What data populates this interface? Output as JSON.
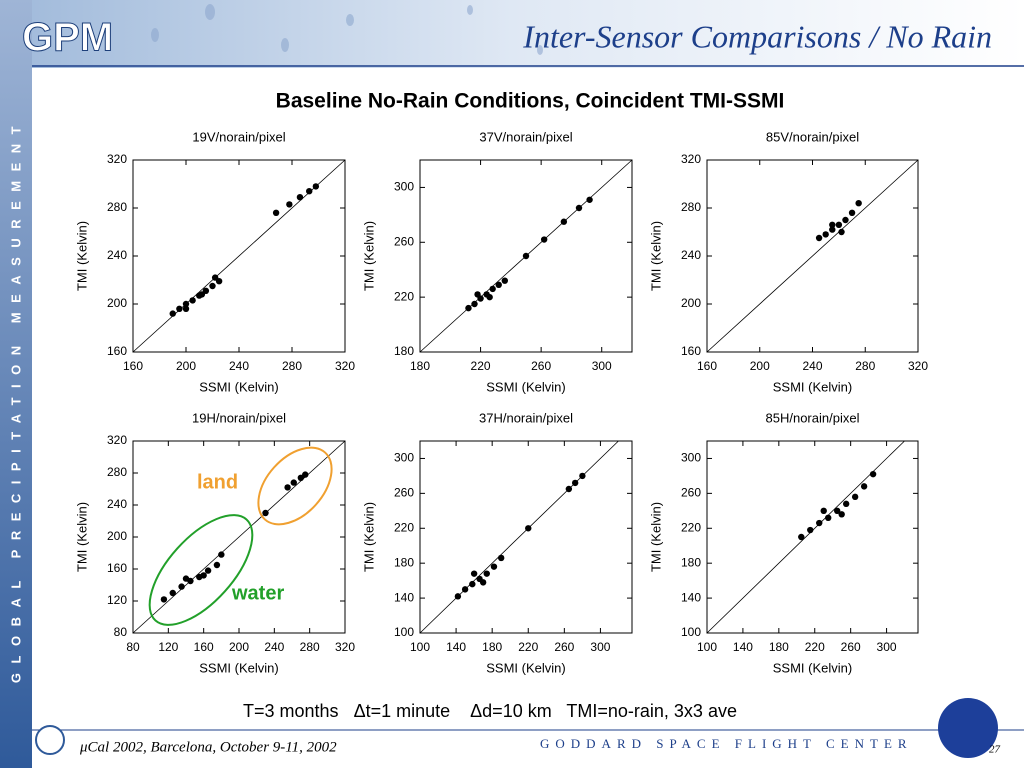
{
  "header": {
    "logo": "GPM",
    "title": "Inter-Sensor Comparisons / No Rain",
    "sidebar": "GLOBAL PRECIPITATION MEASUREMENT"
  },
  "heading": "Baseline No-Rain Conditions, Coincident TMI-SSMI",
  "chart_data": [
    {
      "type": "scatter",
      "title": "19V/norain/pixel",
      "x_label": "SSMI (Kelvin)",
      "y_label": "TMI (Kelvin)",
      "color": "#000000",
      "xlim": [
        160,
        320
      ],
      "ylim": [
        160,
        320
      ],
      "xticks": [
        160,
        200,
        240,
        280,
        320
      ],
      "yticks": [
        160,
        200,
        240,
        280,
        320
      ],
      "x": [
        190,
        195,
        200,
        205,
        210,
        215,
        220,
        225,
        200,
        212,
        222,
        268,
        278,
        286,
        293,
        298
      ],
      "values": [
        192,
        196,
        200,
        203,
        207,
        211,
        215,
        219,
        196,
        208,
        222,
        276,
        283,
        289,
        294,
        298
      ]
    },
    {
      "type": "scatter",
      "title": "37V/norain/pixel",
      "x_label": "SSMI (Kelvin)",
      "y_label": "TMI (Kelvin)",
      "color": "#000000",
      "xlim": [
        180,
        320
      ],
      "ylim": [
        180,
        320
      ],
      "xticks": [
        180,
        220,
        260,
        300
      ],
      "yticks": [
        180,
        220,
        260,
        300
      ],
      "x": [
        212,
        216,
        220,
        224,
        228,
        232,
        236,
        218,
        226,
        250,
        262,
        275,
        285,
        292
      ],
      "values": [
        212,
        215,
        219,
        222,
        226,
        229,
        232,
        222,
        220,
        250,
        262,
        275,
        285,
        291
      ]
    },
    {
      "type": "scatter",
      "title": "85V/norain/pixel",
      "x_label": "SSMI (Kelvin)",
      "y_label": "TMI (Kelvin)",
      "color": "#000000",
      "xlim": [
        160,
        320
      ],
      "ylim": [
        160,
        320
      ],
      "xticks": [
        160,
        200,
        240,
        280,
        320
      ],
      "yticks": [
        160,
        200,
        240,
        280,
        320
      ],
      "x": [
        245,
        250,
        255,
        260,
        265,
        270,
        275,
        255,
        262
      ],
      "values": [
        255,
        258,
        262,
        266,
        270,
        276,
        284,
        266,
        260
      ]
    },
    {
      "type": "scatter",
      "title": "19H/norain/pixel",
      "x_label": "SSMI (Kelvin)",
      "y_label": "TMI (Kelvin)",
      "color": "#000000",
      "xlim": [
        80,
        320
      ],
      "ylim": [
        80,
        320
      ],
      "xticks": [
        80,
        120,
        160,
        200,
        240,
        280,
        320
      ],
      "yticks": [
        80,
        120,
        160,
        200,
        240,
        280,
        320
      ],
      "x": [
        115,
        125,
        135,
        145,
        155,
        165,
        175,
        180,
        140,
        160,
        230,
        255,
        262,
        270,
        275
      ],
      "values": [
        122,
        130,
        138,
        145,
        150,
        158,
        165,
        178,
        148,
        152,
        230,
        262,
        268,
        274,
        278
      ],
      "annotations": [
        "land",
        "water"
      ]
    },
    {
      "type": "scatter",
      "title": "37H/norain/pixel",
      "x_label": "SSMI (Kelvin)",
      "y_label": "TMI (Kelvin)",
      "color": "#000000",
      "xlim": [
        100,
        335
      ],
      "ylim": [
        100,
        320
      ],
      "xticks": [
        100,
        140,
        180,
        220,
        260,
        300
      ],
      "yticks": [
        100,
        140,
        180,
        220,
        260,
        300
      ],
      "x": [
        142,
        150,
        158,
        166,
        174,
        182,
        190,
        160,
        170,
        220,
        265,
        272,
        280
      ],
      "values": [
        142,
        150,
        156,
        162,
        168,
        176,
        186,
        168,
        158,
        220,
        265,
        272,
        280
      ]
    },
    {
      "type": "scatter",
      "title": "85H/norain/pixel",
      "x_label": "SSMI (Kelvin)",
      "y_label": "TMI (Kelvin)",
      "color": "#000000",
      "xlim": [
        100,
        335
      ],
      "ylim": [
        100,
        320
      ],
      "xticks": [
        100,
        140,
        180,
        220,
        260,
        300
      ],
      "yticks": [
        100,
        140,
        180,
        220,
        260,
        300
      ],
      "x": [
        205,
        215,
        225,
        235,
        245,
        255,
        265,
        275,
        285,
        230,
        250
      ],
      "values": [
        210,
        218,
        226,
        232,
        240,
        248,
        256,
        268,
        282,
        240,
        236
      ]
    }
  ],
  "note": "T=3 months   Δt=1 minute    Δd=10 km   TMI=no-rain, 3x3 ave",
  "footer": {
    "event": "μCal 2002, Barcelona, October 9-11, 2002",
    "center": "GODDARD SPACE FLIGHT CENTER",
    "page": "27"
  }
}
